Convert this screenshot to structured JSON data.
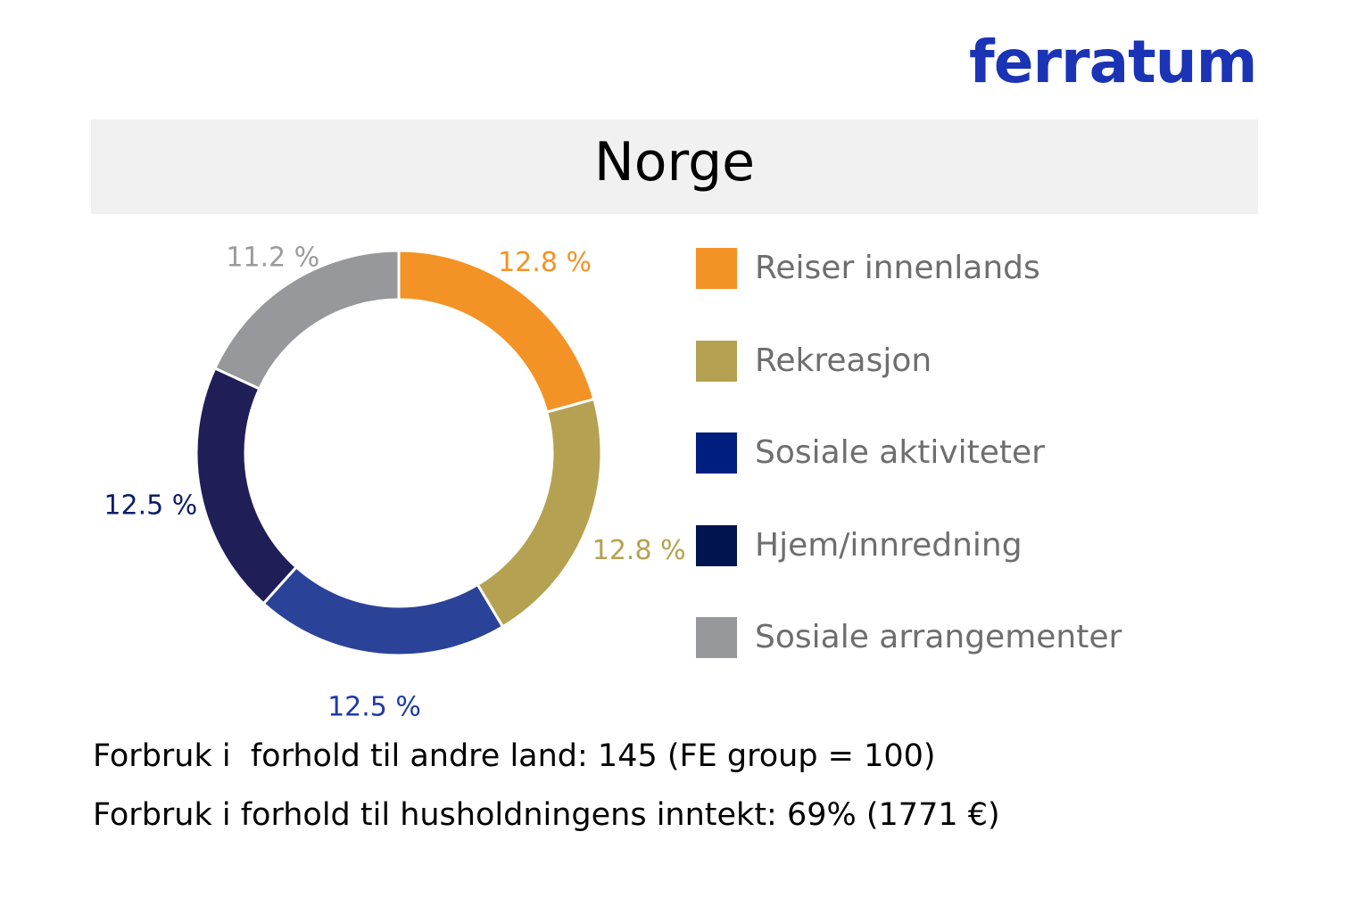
{
  "brand": {
    "logo_text": "ferratum",
    "color": "#1b33b5"
  },
  "chart_data": {
    "type": "pie",
    "donut": true,
    "title": "Norge",
    "categories": [
      "Reiser innenlands",
      "Rekreasjon",
      "Sosiale aktiviteter",
      "Hjem/innredning",
      "Sosiale arrangementer"
    ],
    "values": [
      12.8,
      12.8,
      12.5,
      12.5,
      11.2
    ],
    "labels": [
      "12.8 %",
      "12.8 %",
      "12.5 %",
      "12.5 %",
      "11.2 %"
    ],
    "colors": [
      "#f39325",
      "#b5a152",
      "#2a4399",
      "#201e57",
      "#97989c"
    ],
    "label_colors": [
      "#f39325",
      "#b5a152",
      "#1e3aa8",
      "#0d1c6b",
      "#9b9b9b"
    ],
    "legend": {
      "placement": "right",
      "colors": [
        "#f39325",
        "#b5a152",
        "#001e7d",
        "#01144f",
        "#97989c"
      ]
    }
  },
  "footer": {
    "line1": "Forbruk i  forhold til andre land: 145 (FE group = 100)",
    "line2": "Forbruk i forhold til husholdningens inntekt: 69% (1771 €)"
  }
}
